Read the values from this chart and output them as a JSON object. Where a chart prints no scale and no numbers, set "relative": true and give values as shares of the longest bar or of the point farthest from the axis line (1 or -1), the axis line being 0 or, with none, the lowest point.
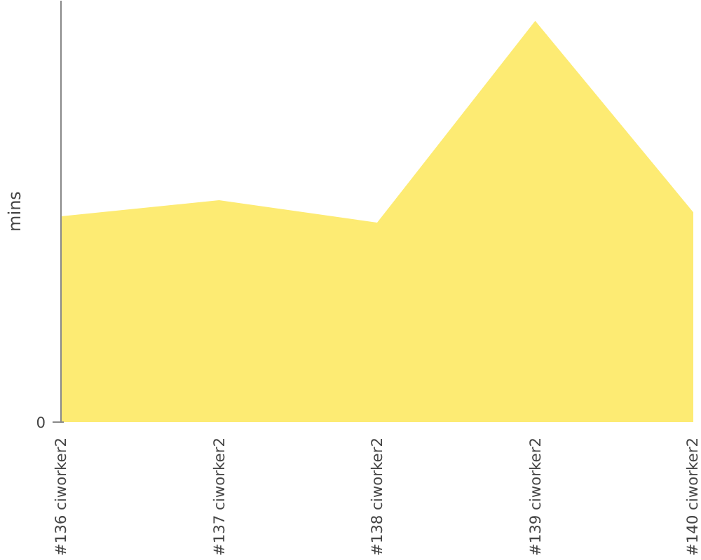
{
  "chart_data": {
    "type": "area",
    "ylabel": "mins",
    "relative": true,
    "annotations": [
      "0"
    ],
    "categories": [
      "#136 ciworker2",
      "#137 ciworker2",
      "#138 ciworker2",
      "#139 ciworker2",
      "#140 ciworker2"
    ],
    "series": [
      {
        "color": "#fdeb73",
        "values": [
          0.513,
          0.553,
          0.497,
          1,
          0.523
        ]
      }
    ]
  }
}
